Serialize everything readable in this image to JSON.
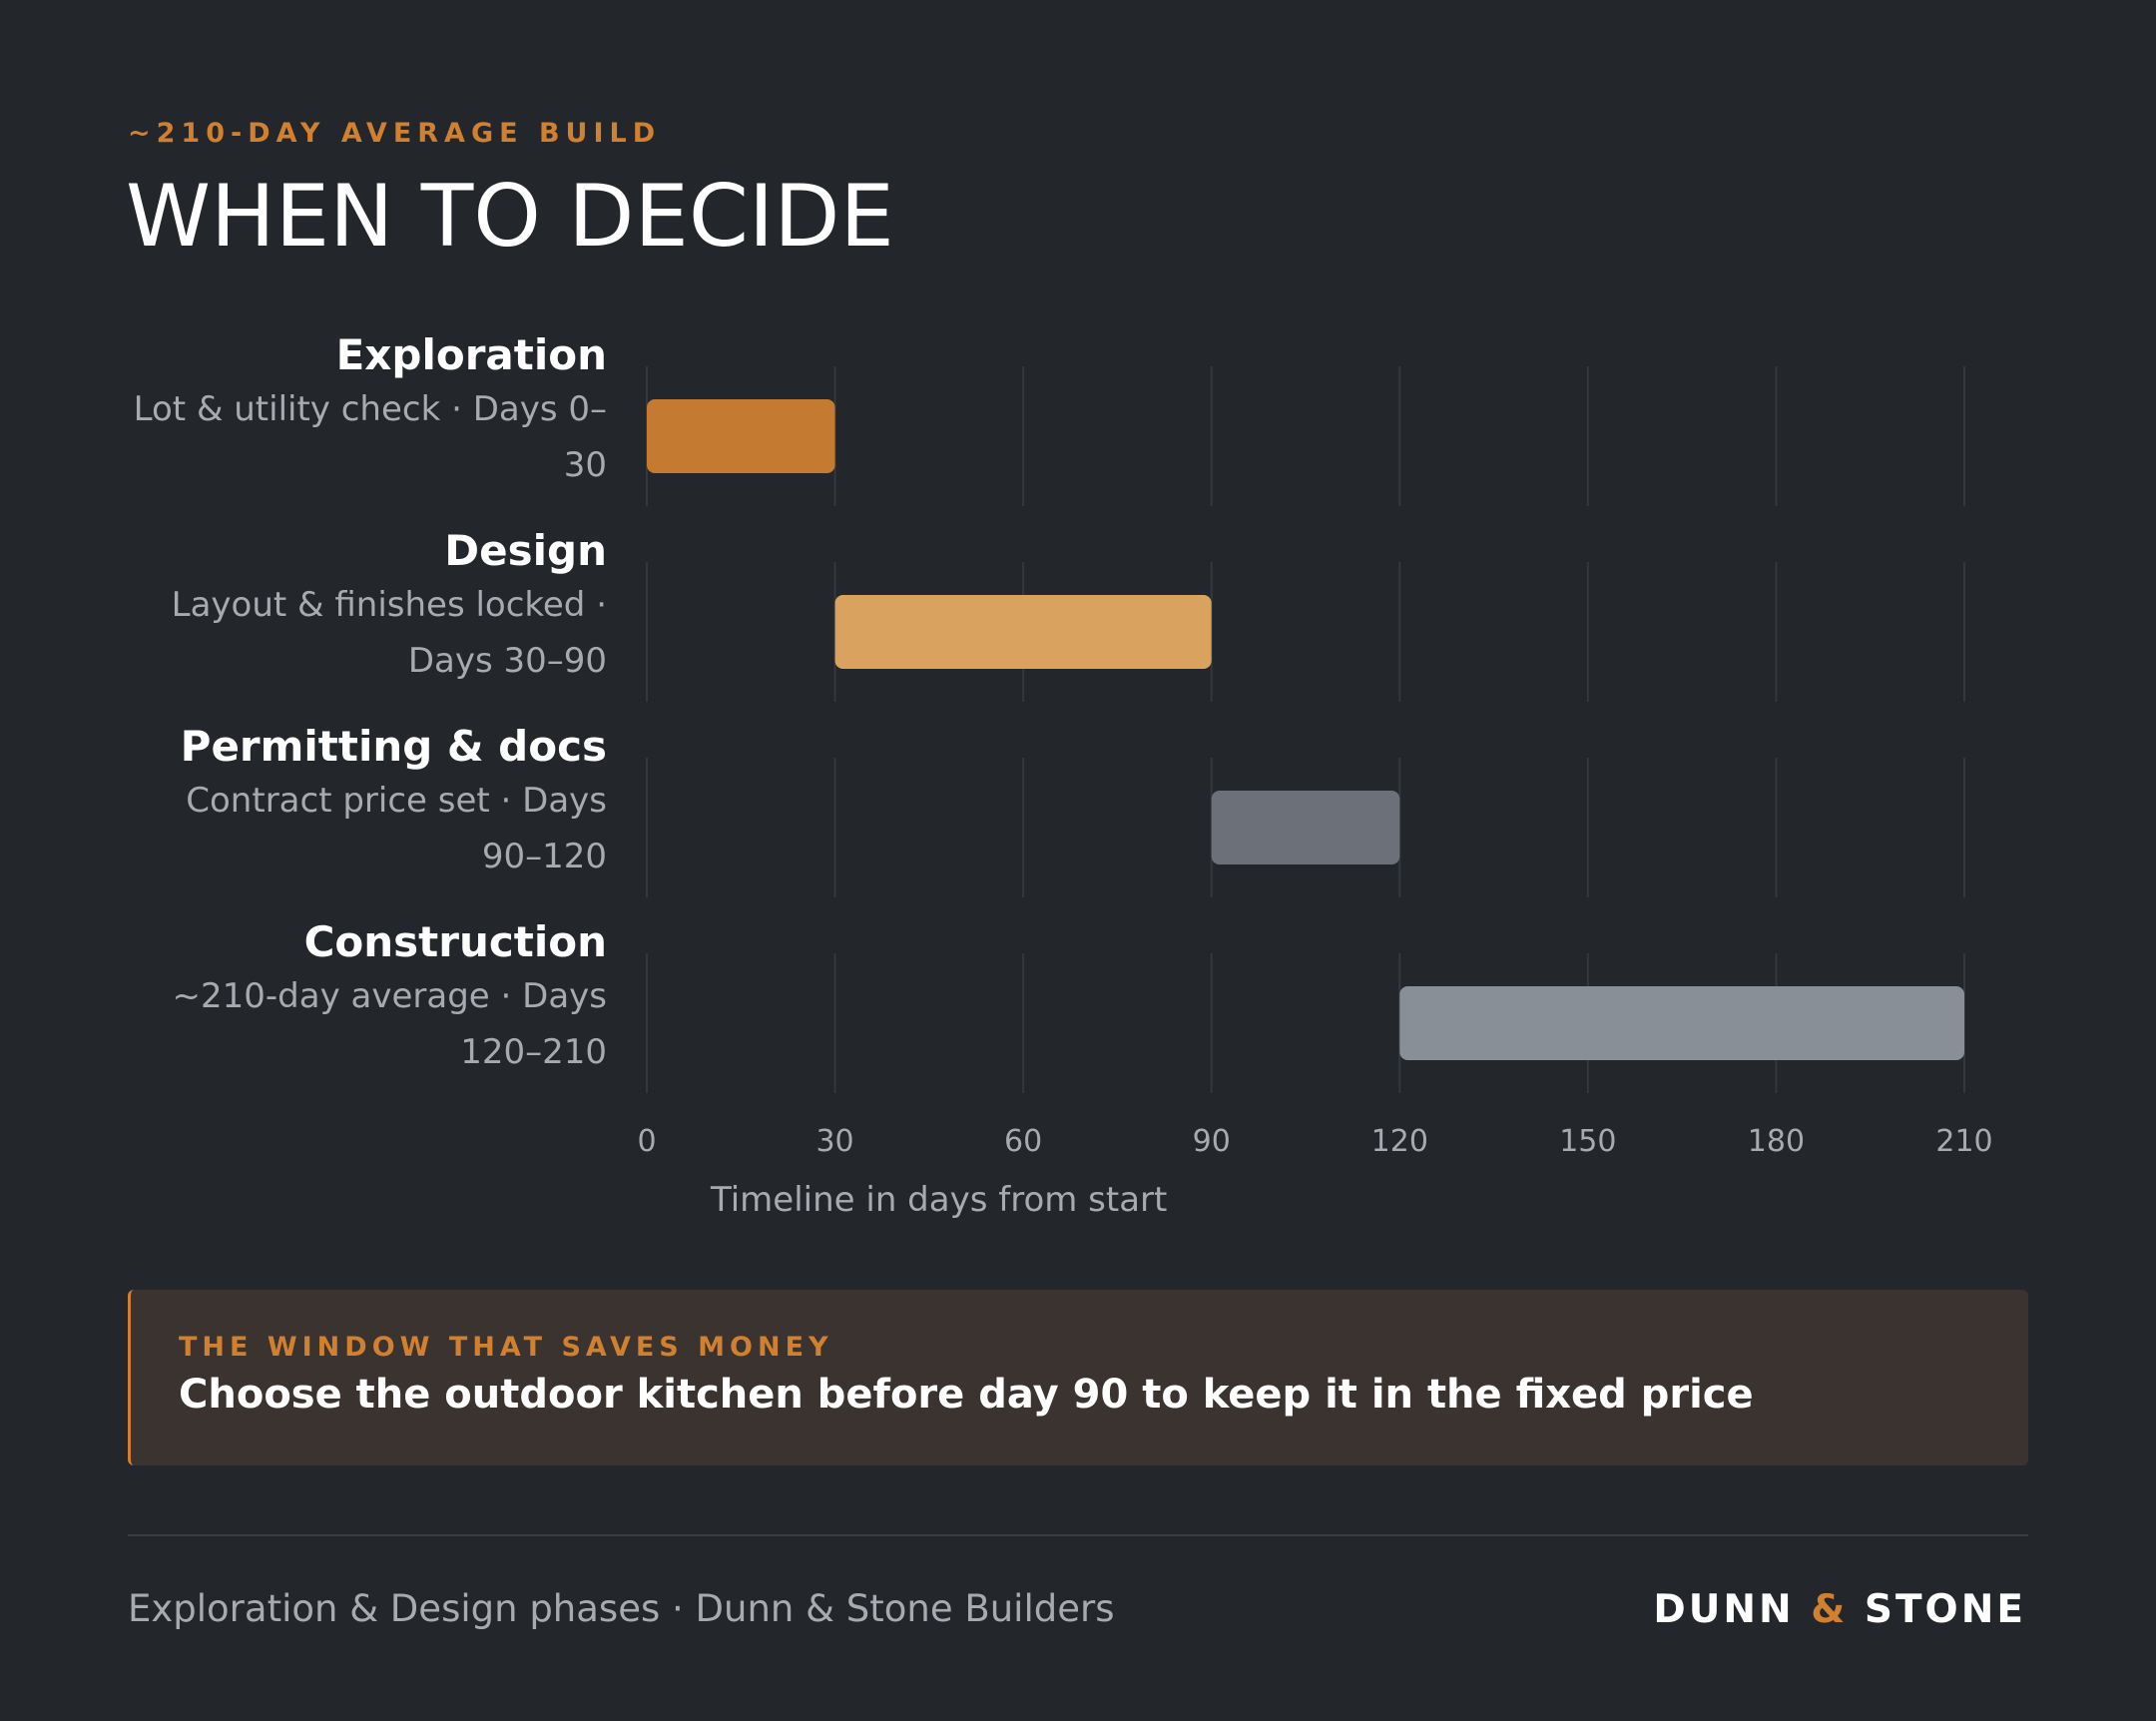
{
  "header": {
    "eyebrow": "~210-DAY AVERAGE BUILD",
    "title": "WHEN TO DECIDE"
  },
  "phases": [
    {
      "name": "Exploration",
      "desc_line1": "Lot & utility check · Days 0–",
      "desc_line2": "30"
    },
    {
      "name": "Design",
      "desc_line1": "Layout & finishes locked ·",
      "desc_line2": "Days 30–90"
    },
    {
      "name": "Permitting & docs",
      "desc_line1": "Contract price set · Days",
      "desc_line2": "90–120"
    },
    {
      "name": "Construction",
      "desc_line1": "~210-day average · Days",
      "desc_line2": "120–210"
    }
  ],
  "chart_data": {
    "type": "bar",
    "subtype": "gantt",
    "xlabel": "Timeline in days from start",
    "xlim": [
      0,
      210
    ],
    "xticks": [
      0,
      30,
      60,
      90,
      120,
      150,
      180,
      210
    ],
    "grid": true,
    "tasks": [
      {
        "category": "Exploration",
        "start": 0,
        "end": 30,
        "color": "#c47a30"
      },
      {
        "category": "Design",
        "start": 30,
        "end": 90,
        "color": "#d9a35f"
      },
      {
        "category": "Permitting & docs",
        "start": 90,
        "end": 120,
        "color": "#6c7179"
      },
      {
        "category": "Construction",
        "start": 120,
        "end": 210,
        "color": "#898f97"
      }
    ]
  },
  "callout": {
    "kicker": "THE WINDOW THAT SAVES MONEY",
    "text": "Choose the outdoor kitchen before day 90 to keep it in the fixed price"
  },
  "footer": {
    "left": "Exploration & Design phases · Dunn & Stone Builders",
    "logo_part1": "DUNN",
    "logo_amp": "&",
    "logo_part2": "STONE"
  },
  "colors": {
    "background": "#23272b",
    "accent": "#d0802f",
    "grid": "#33383d",
    "muted_text": "#a7abb0"
  }
}
